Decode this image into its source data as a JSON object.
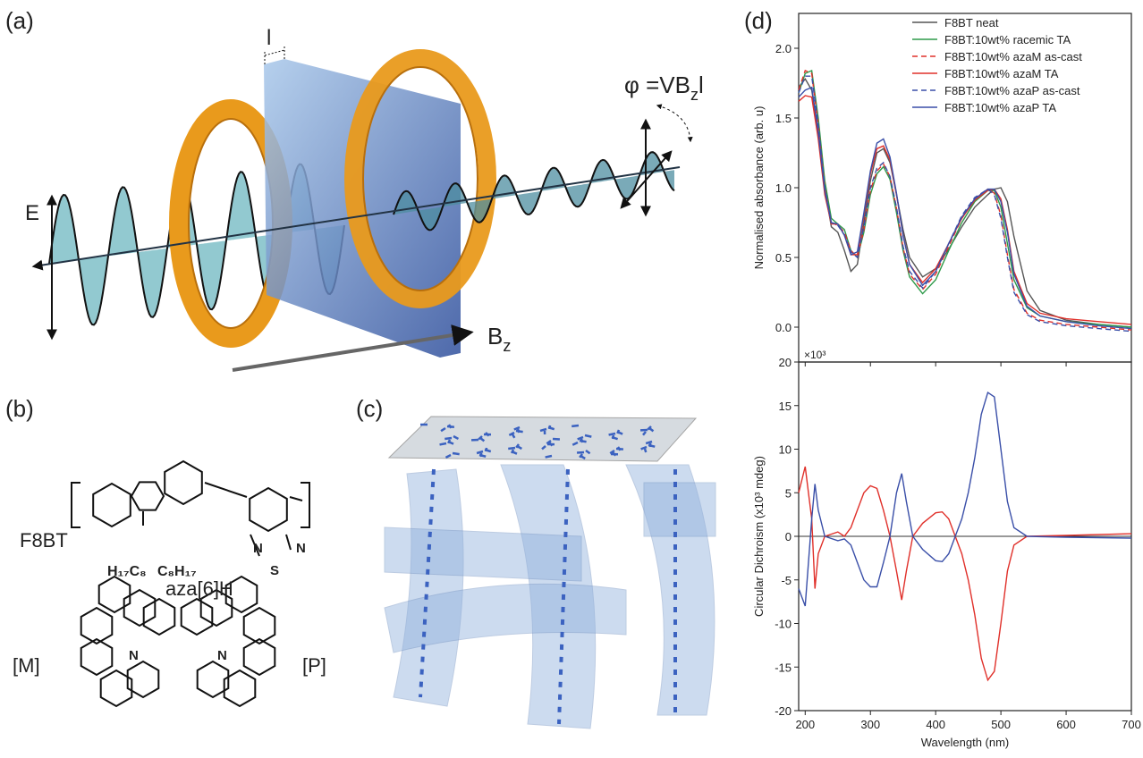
{
  "panel_labels": [
    "(a)",
    "(b)",
    "(c)",
    "(d)"
  ],
  "panel_a": {
    "length_label": "l",
    "phase_label": {
      "text": "φ =VB",
      "sub": "z",
      "end": "l"
    },
    "field_label": "E",
    "magnetic_label": {
      "text": "B",
      "sub": "z"
    }
  },
  "panel_b": {
    "polymer": "F8BT",
    "side_chain_left": "H₁₇C₈",
    "side_chain_right": "C₈H₁₇",
    "atoms": [
      "N",
      "S",
      "N"
    ],
    "helicene": "aza[6]H",
    "m_label": "[M]",
    "p_label": "[P]",
    "helicene_atoms": [
      "N",
      "N"
    ]
  },
  "chart_data": [
    {
      "type": "line",
      "ylabel": "Normalised absorbance (arb. u)",
      "legend": "upper right",
      "x": [
        190,
        200,
        210,
        220,
        230,
        240,
        250,
        260,
        270,
        280,
        290,
        300,
        310,
        320,
        330,
        340,
        350,
        360,
        380,
        400,
        420,
        440,
        460,
        480,
        490,
        500,
        510,
        520,
        540,
        560,
        600,
        650,
        700
      ],
      "xlim": [
        190,
        700
      ],
      "ylim": [
        -0.25,
        2.25
      ],
      "yticks": [
        {
          "value": 0,
          "label": "0.0"
        },
        0.5,
        {
          "value": 1,
          "label": "1.0"
        },
        1.5,
        {
          "value": 2,
          "label": "2.0"
        }
      ],
      "series": [
        {
          "name": "F8BT neat",
          "color": "#555555",
          "dash": false,
          "values": [
            1.72,
            1.78,
            1.7,
            1.4,
            1.0,
            0.72,
            0.68,
            0.55,
            0.4,
            0.45,
            0.75,
            1.05,
            1.25,
            1.28,
            1.18,
            0.95,
            0.7,
            0.5,
            0.36,
            0.42,
            0.56,
            0.72,
            0.86,
            0.95,
            0.99,
            1.0,
            0.9,
            0.65,
            0.26,
            0.12,
            0.05,
            0.02,
            0.0
          ]
        },
        {
          "name": "F8BT:10wt% racemic TA",
          "color": "#2e9a4a",
          "dash": false,
          "values": [
            1.68,
            1.82,
            1.84,
            1.5,
            1.05,
            0.78,
            0.74,
            0.7,
            0.55,
            0.5,
            0.68,
            0.95,
            1.1,
            1.15,
            1.06,
            0.82,
            0.55,
            0.36,
            0.24,
            0.34,
            0.55,
            0.75,
            0.9,
            0.98,
            0.98,
            0.86,
            0.6,
            0.34,
            0.14,
            0.08,
            0.04,
            0.02,
            0.0
          ]
        },
        {
          "name": "F8BT:10wt% azaM as-cast",
          "color": "#e0302a",
          "dash": true,
          "values": [
            1.7,
            1.84,
            1.82,
            1.45,
            1.0,
            0.75,
            0.73,
            0.68,
            0.55,
            0.5,
            0.7,
            0.98,
            1.12,
            1.17,
            1.08,
            0.85,
            0.57,
            0.38,
            0.27,
            0.38,
            0.58,
            0.78,
            0.92,
            0.99,
            0.96,
            0.8,
            0.52,
            0.27,
            0.1,
            0.05,
            0.02,
            0.0,
            -0.02
          ]
        },
        {
          "name": "F8BT:10wt% azaM TA",
          "color": "#e0302a",
          "dash": false,
          "values": [
            1.62,
            1.66,
            1.65,
            1.35,
            0.95,
            0.74,
            0.74,
            0.66,
            0.52,
            0.52,
            0.8,
            1.1,
            1.28,
            1.3,
            1.2,
            0.95,
            0.66,
            0.45,
            0.32,
            0.42,
            0.6,
            0.78,
            0.91,
            0.98,
            0.99,
            0.92,
            0.7,
            0.4,
            0.17,
            0.1,
            0.06,
            0.04,
            0.02
          ]
        },
        {
          "name": "F8BT:10wt% azaP as-cast",
          "color": "#3a4fa8",
          "dash": true,
          "values": [
            1.68,
            1.8,
            1.8,
            1.45,
            1.0,
            0.75,
            0.73,
            0.66,
            0.54,
            0.5,
            0.72,
            1.0,
            1.14,
            1.18,
            1.08,
            0.86,
            0.58,
            0.4,
            0.28,
            0.4,
            0.6,
            0.8,
            0.93,
            0.99,
            0.95,
            0.78,
            0.5,
            0.25,
            0.09,
            0.04,
            0.01,
            -0.01,
            -0.03
          ]
        },
        {
          "name": "F8BT:10wt% azaP TA",
          "color": "#3a4fa8",
          "dash": false,
          "values": [
            1.65,
            1.7,
            1.72,
            1.4,
            0.98,
            0.75,
            0.74,
            0.66,
            0.52,
            0.54,
            0.82,
            1.12,
            1.32,
            1.35,
            1.22,
            0.96,
            0.66,
            0.45,
            0.3,
            0.4,
            0.6,
            0.79,
            0.92,
            0.99,
            0.99,
            0.9,
            0.68,
            0.38,
            0.15,
            0.08,
            0.04,
            0.01,
            -0.01
          ]
        }
      ]
    },
    {
      "type": "line",
      "ylabel": "Circular Dichroism (x10³ mdeg)",
      "xlabel": "Wavelength (nm)",
      "multiplier_label": "×10³",
      "zero_line": true,
      "x": [
        190,
        200,
        210,
        215,
        220,
        230,
        250,
        260,
        270,
        280,
        290,
        300,
        310,
        320,
        330,
        340,
        348,
        355,
        365,
        380,
        400,
        410,
        420,
        430,
        440,
        450,
        460,
        470,
        480,
        490,
        500,
        510,
        520,
        540,
        600,
        700
      ],
      "xlim": [
        190,
        700
      ],
      "xticks": [
        200,
        300,
        400,
        500,
        600,
        700
      ],
      "ylim": [
        -20,
        20
      ],
      "yticks": [
        -20,
        -15,
        -10,
        -5,
        0,
        5,
        10,
        15,
        20
      ],
      "series": [
        {
          "color": "#e0302a",
          "values": [
            5,
            8,
            2,
            -6,
            -2,
            0,
            0.5,
            0,
            1,
            3,
            5,
            5.8,
            5.5,
            3,
            0,
            -4,
            -7.3,
            -4,
            0,
            1.5,
            2.7,
            2.8,
            2,
            0,
            -2,
            -5,
            -9,
            -14,
            -16.5,
            -15.5,
            -10,
            -4,
            -1,
            0,
            0.1,
            0.3
          ]
        },
        {
          "color": "#3a4fa8",
          "values": [
            -6,
            -8,
            2,
            6,
            3,
            0,
            -0.5,
            -0.3,
            -1,
            -3,
            -5,
            -5.8,
            -5.8,
            -3,
            0,
            5,
            7.2,
            4,
            0,
            -1.5,
            -2.8,
            -2.9,
            -2,
            0,
            2,
            5,
            9,
            14,
            16.5,
            16,
            10,
            4,
            1,
            0,
            -0.1,
            -0.2
          ]
        }
      ]
    }
  ]
}
